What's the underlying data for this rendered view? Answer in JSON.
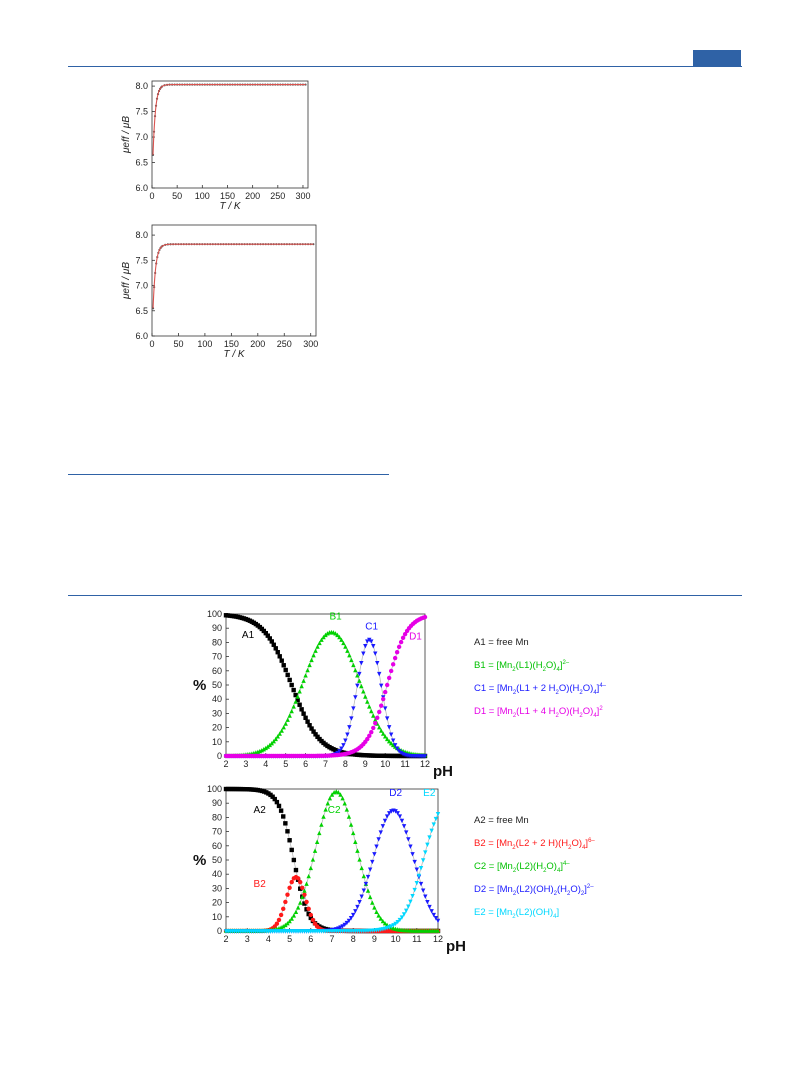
{
  "colors": {
    "rule": "#2f62a6",
    "fit": "#d9534f",
    "A": "#000000",
    "B": "#00d100",
    "C": "#1a1aff",
    "D": "#e600e6",
    "red": "#ff1a1a",
    "E": "#00d8ff"
  },
  "legend_top": {
    "a1": "A1 = free Mn",
    "b1": {
      "pre": "B1 = [Mn",
      "s1": "2",
      "m1": "(L1)(H",
      "s2": "2",
      "m2": "O)",
      "s3": "4",
      "post": "]",
      "sup": "2–"
    },
    "c1": {
      "pre": "C1 = [Mn",
      "s1": "2",
      "m1": "(L1 + 2 H",
      "s2": "2",
      "m2": "O)(H",
      "s3": "2",
      "m3": "O)",
      "s4": "4",
      "post": "]",
      "sup": "4–"
    },
    "d1": {
      "pre": "D1 = [Mn",
      "s1": "2",
      "m1": "(L1 + 4 H",
      "s2": "2",
      "m2": "O)(H",
      "s3": "2",
      "m3": "O)",
      "s4": "4",
      "post": "]",
      "sup": "2"
    }
  },
  "legend_bottom": {
    "a2": "A2 = free Mn",
    "b2": {
      "pre": "B2 = [Mn",
      "s1": "2",
      "m1": "(L2 + 2 H)(H",
      "s2": "2",
      "m2": "O)",
      "s3": "4",
      "post": "]",
      "sup": "6–"
    },
    "c2": {
      "pre": "C2 = [Mn",
      "s1": "2",
      "m1": "(L2)(H",
      "s2": "2",
      "m2": "O)",
      "s3": "4",
      "post": "]",
      "sup": "4–"
    },
    "d2": {
      "pre": "D2 = [Mn",
      "s1": "2",
      "m1": "(L2)(OH)",
      "s2": "2",
      "m2": "(H",
      "s3": "2",
      "m3": "O)",
      "s4": "2",
      "post": "]",
      "sup": "2–"
    },
    "e2": {
      "pre": "E2 = [Mn",
      "s1": "2",
      "m1": "(L2)(OH)",
      "s2": "4",
      "post": "]"
    }
  },
  "chart_data": [
    {
      "type": "scatter",
      "xlabel": "T / K",
      "ylabel": "μeff / μB",
      "xlim": [
        0,
        310
      ],
      "ylim": [
        6.0,
        8.1
      ],
      "xticks": [
        0,
        50,
        100,
        150,
        200,
        250,
        300
      ],
      "xticklabels": [
        "0",
        "50",
        "100",
        "150",
        "200",
        "250",
        "300"
      ],
      "yticks": [
        6.0,
        6.5,
        7.0,
        7.5,
        8.0
      ],
      "yticklabels": [
        "6.0",
        "6.5",
        "7.0",
        "7.5",
        "8.0"
      ],
      "series": [
        {
          "plateau": 8.03,
          "start": 6.65,
          "tau": 5,
          "t_start": 2,
          "t_end": 305
        }
      ]
    },
    {
      "type": "scatter",
      "xlabel": "T / K",
      "ylabel": "μeff / μB",
      "xlim": [
        0,
        310
      ],
      "ylim": [
        6.0,
        8.2
      ],
      "xticks": [
        0,
        50,
        100,
        150,
        200,
        250,
        300
      ],
      "xticklabels": [
        "0",
        "50",
        "100",
        "150",
        "200",
        "250",
        "300"
      ],
      "yticks": [
        6.0,
        6.5,
        7.0,
        7.5,
        8.0
      ],
      "yticklabels": [
        "6.0",
        "6.5",
        "7.0",
        "7.5",
        "8.0"
      ],
      "series": [
        {
          "plateau": 7.82,
          "start": 6.55,
          "tau": 5,
          "t_start": 2,
          "t_end": 305
        }
      ]
    },
    {
      "type": "line",
      "xlabel": "pH",
      "ylabel": "%",
      "xlim": [
        2,
        12
      ],
      "ylim": [
        0,
        100
      ],
      "xticks": [
        2,
        3,
        4,
        5,
        6,
        7,
        8,
        9,
        10,
        11,
        12
      ],
      "xticklabels": [
        "2",
        "3",
        "4",
        "5",
        "6",
        "7",
        "8",
        "9",
        "10",
        "11",
        "12"
      ],
      "yticks": [
        0,
        10,
        20,
        30,
        40,
        50,
        60,
        70,
        80,
        90,
        100
      ],
      "yticklabels": [
        "0",
        "10",
        "20",
        "30",
        "40",
        "50",
        "60",
        "70",
        "80",
        "90",
        "100"
      ],
      "series": [
        {
          "name": "A1",
          "label": "A1",
          "color": "#000000",
          "marker": "square",
          "shape": "sigmoid_down",
          "center": 5.3,
          "width": 0.7,
          "max": 100
        },
        {
          "name": "B1",
          "label": "B1",
          "color": "#00d100",
          "marker": "triangle-up",
          "shape": "gauss",
          "center": 7.3,
          "width": 1.4,
          "max": 87
        },
        {
          "name": "C1",
          "label": "C1",
          "color": "#1a1aff",
          "marker": "triangle-down",
          "shape": "gauss",
          "center": 9.2,
          "width": 0.6,
          "max": 82
        },
        {
          "name": "D1",
          "label": "D1",
          "color": "#e600e6",
          "marker": "circle",
          "shape": "sigmoid_up",
          "center": 10.1,
          "width": 0.5,
          "max": 100
        }
      ],
      "curve_labels": [
        {
          "text": "A1",
          "x": 2.8,
          "y": 83,
          "color": "#000000"
        },
        {
          "text": "B1",
          "x": 7.2,
          "y": 96,
          "color": "#00d100"
        },
        {
          "text": "C1",
          "x": 9.0,
          "y": 89,
          "color": "#1a1aff"
        },
        {
          "text": "D1",
          "x": 11.2,
          "y": 82,
          "color": "#e600e6"
        }
      ]
    },
    {
      "type": "line",
      "xlabel": "pH",
      "ylabel": "%",
      "xlim": [
        2,
        12
      ],
      "ylim": [
        0,
        100
      ],
      "xticks": [
        2,
        3,
        4,
        5,
        6,
        7,
        8,
        9,
        10,
        11,
        12
      ],
      "xticklabels": [
        "2",
        "3",
        "4",
        "5",
        "6",
        "7",
        "8",
        "9",
        "10",
        "11",
        "12"
      ],
      "yticks": [
        0,
        10,
        20,
        30,
        40,
        50,
        60,
        70,
        80,
        90,
        100
      ],
      "yticklabels": [
        "0",
        "10",
        "20",
        "30",
        "40",
        "50",
        "60",
        "70",
        "80",
        "90",
        "100"
      ],
      "series": [
        {
          "name": "A2",
          "label": "A2",
          "color": "#000000",
          "marker": "square",
          "shape": "sigmoid_down",
          "center": 5.2,
          "width": 0.35,
          "max": 100
        },
        {
          "name": "B2",
          "label": "B2",
          "color": "#ff1a1a",
          "marker": "circle",
          "shape": "gauss",
          "center": 5.3,
          "width": 0.45,
          "max": 38
        },
        {
          "name": "C2",
          "label": "C2",
          "color": "#00d100",
          "marker": "triangle-up",
          "shape": "gauss",
          "center": 7.2,
          "width": 0.95,
          "max": 98
        },
        {
          "name": "D2",
          "label": "D2",
          "color": "#1a1aff",
          "marker": "triangle-down",
          "shape": "gauss",
          "center": 9.9,
          "width": 0.95,
          "max": 85
        },
        {
          "name": "E2",
          "label": "E2",
          "color": "#00d8ff",
          "marker": "triangle-down",
          "shape": "sigmoid_up",
          "center": 11.3,
          "width": 0.45,
          "max": 100
        }
      ],
      "curve_labels": [
        {
          "text": "A2",
          "x": 3.3,
          "y": 83,
          "color": "#000000"
        },
        {
          "text": "B2",
          "x": 3.3,
          "y": 31,
          "color": "#ff1a1a"
        },
        {
          "text": "C2",
          "x": 6.8,
          "y": 83,
          "color": "#00d100"
        },
        {
          "text": "D2",
          "x": 9.7,
          "y": 95,
          "color": "#1a1aff"
        },
        {
          "text": "E2",
          "x": 11.3,
          "y": 95,
          "color": "#00d8ff"
        }
      ]
    }
  ]
}
